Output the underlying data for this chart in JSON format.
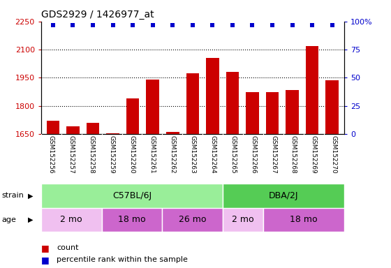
{
  "title": "GDS2929 / 1426977_at",
  "samples": [
    "GSM152256",
    "GSM152257",
    "GSM152258",
    "GSM152259",
    "GSM152260",
    "GSM152261",
    "GSM152262",
    "GSM152263",
    "GSM152264",
    "GSM152265",
    "GSM152266",
    "GSM152267",
    "GSM152268",
    "GSM152269",
    "GSM152270"
  ],
  "counts": [
    1720,
    1690,
    1710,
    1655,
    1840,
    1940,
    1660,
    1975,
    2055,
    1980,
    1875,
    1875,
    1885,
    2120,
    1935
  ],
  "percentile_ranks": [
    97,
    97,
    97,
    97,
    97,
    97,
    97,
    97,
    97,
    97,
    97,
    97,
    97,
    97,
    97
  ],
  "ylim_left": [
    1650,
    2250
  ],
  "ylim_right": [
    0,
    100
  ],
  "yticks_left": [
    1650,
    1800,
    1950,
    2100,
    2250
  ],
  "yticks_right": [
    0,
    25,
    50,
    75,
    100
  ],
  "bar_color": "#cc0000",
  "dot_color": "#0000cc",
  "strain_c57": {
    "label": "C57BL/6J",
    "start": 0,
    "end": 9,
    "color": "#99ee99"
  },
  "strain_dba": {
    "label": "DBA/2J",
    "start": 9,
    "end": 15,
    "color": "#55cc55"
  },
  "age_groups": [
    {
      "label": "2 mo",
      "start": 0,
      "end": 3,
      "color": "#f0c0f0"
    },
    {
      "label": "18 mo",
      "start": 3,
      "end": 6,
      "color": "#cc66cc"
    },
    {
      "label": "26 mo",
      "start": 6,
      "end": 9,
      "color": "#cc66cc"
    },
    {
      "label": "2 mo",
      "start": 9,
      "end": 11,
      "color": "#f0c0f0"
    },
    {
      "label": "18 mo",
      "start": 11,
      "end": 15,
      "color": "#cc66cc"
    }
  ],
  "legend_count_label": "count",
  "legend_pct_label": "percentile rank within the sample",
  "xlabel_strain": "strain",
  "xlabel_age": "age",
  "bg_color": "#ffffff",
  "label_bg_color": "#d8d8d8"
}
